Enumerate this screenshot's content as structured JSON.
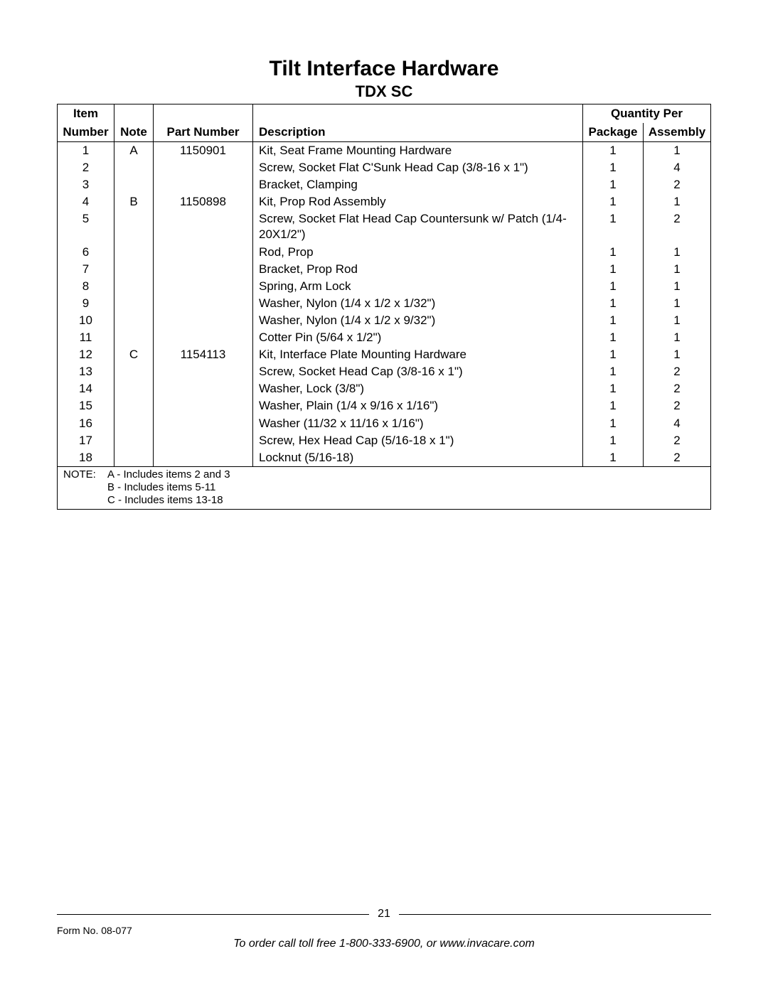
{
  "title": "Tilt Interface Hardware",
  "subtitle": "TDX SC",
  "table": {
    "header": {
      "item_top": "Item",
      "item_bottom": "Number",
      "note": "Note",
      "part": "Part Number",
      "desc": "Description",
      "qty_top": "Quantity Per",
      "pkg": "Package",
      "asm": "Assembly"
    },
    "rows": [
      {
        "item": "1",
        "note": "A",
        "part": "1150901",
        "desc": "Kit, Seat Frame Mounting Hardware",
        "pkg": "1",
        "asm": "1"
      },
      {
        "item": "2",
        "note": "",
        "part": "",
        "desc": "Screw, Socket Flat C'Sunk Head Cap (3/8-16 x 1\")",
        "pkg": "1",
        "asm": "4"
      },
      {
        "item": "3",
        "note": "",
        "part": "",
        "desc": "Bracket, Clamping",
        "pkg": "1",
        "asm": "2"
      },
      {
        "item": "4",
        "note": "B",
        "part": "1150898",
        "desc": "Kit, Prop Rod Assembly",
        "pkg": "1",
        "asm": "1"
      },
      {
        "item": "5",
        "note": "",
        "part": "",
        "desc": "Screw, Socket Flat Head Cap Countersunk w/ Patch (1/4-20X1/2\")",
        "pkg": "1",
        "asm": "2"
      },
      {
        "item": "6",
        "note": "",
        "part": "",
        "desc": "Rod, Prop",
        "pkg": "1",
        "asm": "1"
      },
      {
        "item": "7",
        "note": "",
        "part": "",
        "desc": "Bracket, Prop Rod",
        "pkg": "1",
        "asm": "1"
      },
      {
        "item": "8",
        "note": "",
        "part": "",
        "desc": "Spring, Arm Lock",
        "pkg": "1",
        "asm": "1"
      },
      {
        "item": "9",
        "note": "",
        "part": "",
        "desc": "Washer, Nylon (1/4 x 1/2 x 1/32\")",
        "pkg": "1",
        "asm": "1"
      },
      {
        "item": "10",
        "note": "",
        "part": "",
        "desc": "Washer, Nylon (1/4 x 1/2 x 9/32\")",
        "pkg": "1",
        "asm": "1"
      },
      {
        "item": "11",
        "note": "",
        "part": "",
        "desc": "Cotter Pin (5/64 x 1/2\")",
        "pkg": "1",
        "asm": "1"
      },
      {
        "item": "12",
        "note": "C",
        "part": "1154113",
        "desc": "Kit, Interface Plate Mounting Hardware",
        "pkg": "1",
        "asm": "1"
      },
      {
        "item": "13",
        "note": "",
        "part": "",
        "desc": "Screw, Socket Head Cap (3/8-16 x 1\")",
        "pkg": "1",
        "asm": "2"
      },
      {
        "item": "14",
        "note": "",
        "part": "",
        "desc": "Washer, Lock (3/8\")",
        "pkg": "1",
        "asm": "2"
      },
      {
        "item": "15",
        "note": "",
        "part": "",
        "desc": "Washer, Plain (1/4 x 9/16 x 1/16\")",
        "pkg": "1",
        "asm": "2"
      },
      {
        "item": "16",
        "note": "",
        "part": "",
        "desc": "Washer (11/32 x 11/16 x 1/16\")",
        "pkg": "1",
        "asm": "4"
      },
      {
        "item": "17",
        "note": "",
        "part": "",
        "desc": "Screw, Hex Head Cap (5/16-18 x 1\")",
        "pkg": "1",
        "asm": "2"
      },
      {
        "item": "18",
        "note": "",
        "part": "",
        "desc": "Locknut (5/16-18)",
        "pkg": "1",
        "asm": "2"
      }
    ],
    "note_label": "NOTE:",
    "note_lines": [
      "A - Includes items 2 and 3",
      "B - Includes items 5-11",
      "C - Includes items 13-18"
    ]
  },
  "footer": {
    "page": "21",
    "form": "Form No. 08-077",
    "order": "To order call toll free 1-800-333-6900, or www.invacare.com"
  }
}
